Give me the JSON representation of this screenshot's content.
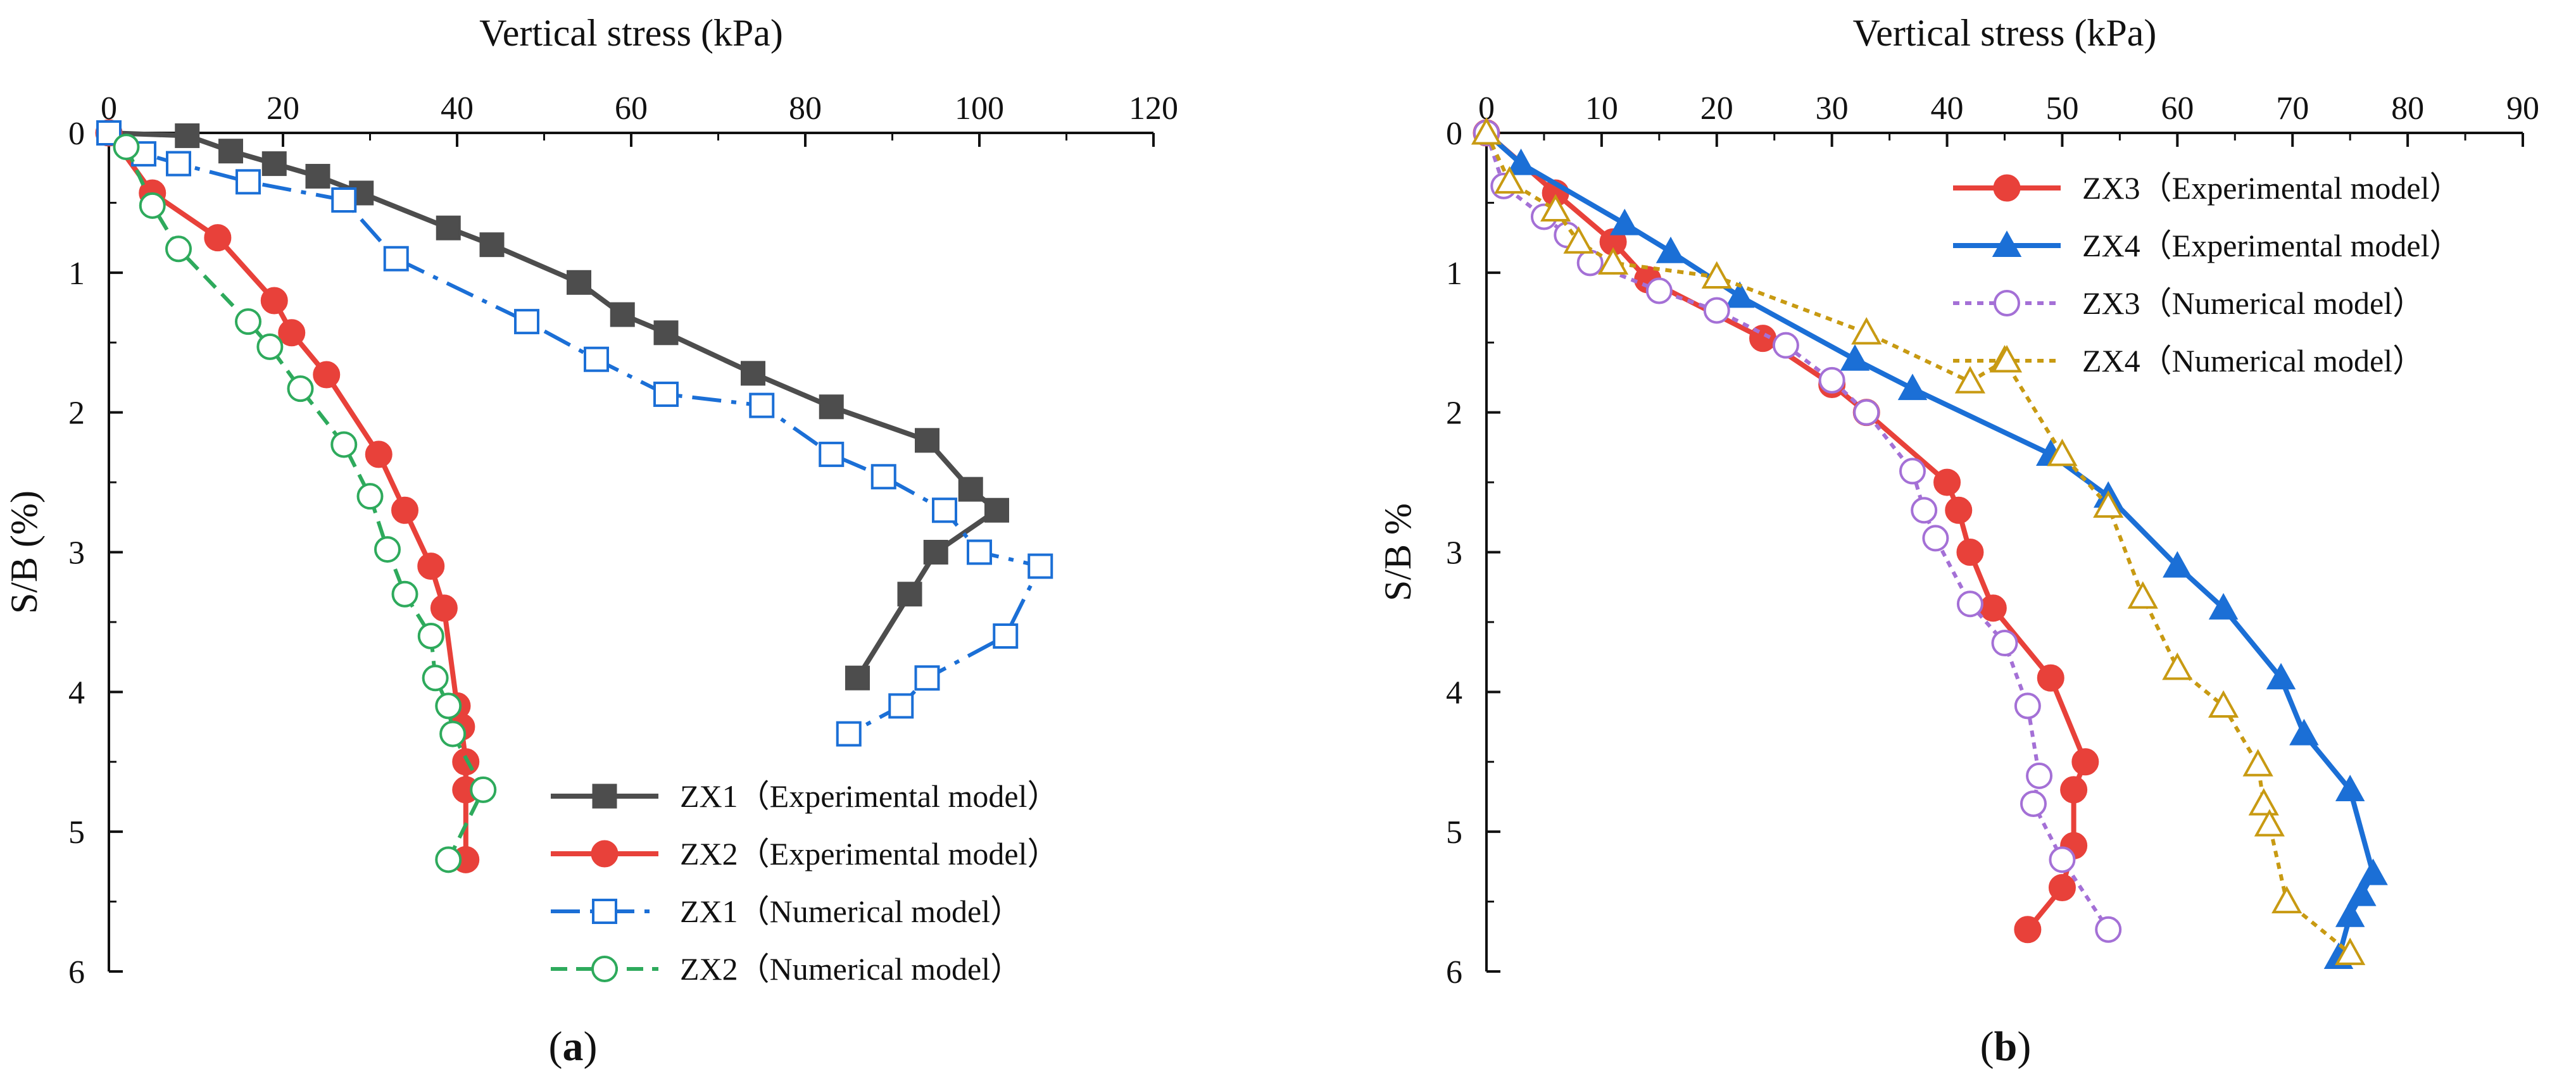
{
  "chart_data": [
    {
      "type": "line",
      "panel_label": "a",
      "caption_open": "(",
      "caption_close": ")",
      "xlabel": "Vertical stress (kPa)",
      "ylabel": "S/B (%)",
      "xlim": [
        0,
        120
      ],
      "ylim": [
        0,
        6
      ],
      "y_inverted": true,
      "x_axis_position": "top",
      "xticks": [
        "0",
        "20",
        "40",
        "60",
        "80",
        "100",
        "120"
      ],
      "yticks": [
        "0",
        "1",
        "2",
        "3",
        "4",
        "5",
        "6"
      ],
      "grid": false,
      "legend_position": "bottom-right",
      "series": [
        {
          "name": "ZX1（Experimental model）",
          "color": "#4d4d4d",
          "marker": "filled-square",
          "line_style": "solid",
          "points": [
            [
              0,
              0
            ],
            [
              9,
              0.02
            ],
            [
              14,
              0.13
            ],
            [
              19,
              0.22
            ],
            [
              24,
              0.31
            ],
            [
              29,
              0.43
            ],
            [
              39,
              0.68
            ],
            [
              44,
              0.8
            ],
            [
              54,
              1.07
            ],
            [
              59,
              1.3
            ],
            [
              64,
              1.43
            ],
            [
              74,
              1.72
            ],
            [
              83,
              1.96
            ],
            [
              94,
              2.2
            ],
            [
              99,
              2.55
            ],
            [
              102,
              2.7
            ],
            [
              95,
              3.0
            ],
            [
              92,
              3.3
            ],
            [
              86,
              3.9
            ]
          ]
        },
        {
          "name": "ZX2（Experimental model）",
          "color": "#e8413a",
          "marker": "filled-circle",
          "line_style": "solid",
          "points": [
            [
              0,
              0
            ],
            [
              5,
              0.43
            ],
            [
              12.5,
              0.75
            ],
            [
              19,
              1.2
            ],
            [
              21,
              1.43
            ],
            [
              25,
              1.73
            ],
            [
              31,
              2.3
            ],
            [
              34,
              2.7
            ],
            [
              37,
              3.1
            ],
            [
              38.5,
              3.4
            ],
            [
              40,
              4.1
            ],
            [
              40.5,
              4.25
            ],
            [
              41,
              4.5
            ],
            [
              41,
              4.7
            ],
            [
              41,
              5.2
            ]
          ]
        },
        {
          "name": "ZX1（Numerical model）",
          "color": "#1b6fd6",
          "marker": "open-square",
          "line_style": "dash-dot",
          "points": [
            [
              0,
              0
            ],
            [
              4,
              0.15
            ],
            [
              8,
              0.22
            ],
            [
              16,
              0.35
            ],
            [
              27,
              0.48
            ],
            [
              33,
              0.9
            ],
            [
              48,
              1.35
            ],
            [
              56,
              1.62
            ],
            [
              64,
              1.87
            ],
            [
              75,
              1.95
            ],
            [
              83,
              2.3
            ],
            [
              89,
              2.46
            ],
            [
              96,
              2.7
            ],
            [
              100,
              3.0
            ],
            [
              107,
              3.1
            ],
            [
              103,
              3.6
            ],
            [
              94,
              3.9
            ],
            [
              91,
              4.1
            ],
            [
              85,
              4.3
            ]
          ]
        },
        {
          "name": "ZX2（Numerical model）",
          "color": "#2eaa5c",
          "marker": "open-circle",
          "line_style": "dashed",
          "points": [
            [
              2,
              0.1
            ],
            [
              5,
              0.52
            ],
            [
              8,
              0.83
            ],
            [
              16,
              1.35
            ],
            [
              18.5,
              1.53
            ],
            [
              22,
              1.83
            ],
            [
              27,
              2.23
            ],
            [
              30,
              2.6
            ],
            [
              32,
              2.98
            ],
            [
              34,
              3.3
            ],
            [
              37,
              3.6
            ],
            [
              37.5,
              3.9
            ],
            [
              39,
              4.1
            ],
            [
              39.5,
              4.3
            ],
            [
              43,
              4.7
            ],
            [
              39,
              5.2
            ]
          ]
        }
      ]
    },
    {
      "type": "line",
      "panel_label": "b",
      "caption_open": "(",
      "caption_close": ")",
      "xlabel": "Vertical stress (kPa)",
      "ylabel": "S/B %",
      "xlim": [
        0,
        90
      ],
      "ylim": [
        0,
        6
      ],
      "y_inverted": true,
      "x_axis_position": "top",
      "xticks": [
        "0",
        "10",
        "20",
        "30",
        "40",
        "50",
        "60",
        "70",
        "80",
        "90"
      ],
      "yticks": [
        "0",
        "1",
        "2",
        "3",
        "4",
        "5",
        "6"
      ],
      "grid": false,
      "legend_position": "top-right",
      "series": [
        {
          "name": "ZX3（Experimental model）",
          "color": "#e8413a",
          "marker": "filled-circle",
          "line_style": "solid",
          "points": [
            [
              0,
              0
            ],
            [
              6,
              0.43
            ],
            [
              11,
              0.78
            ],
            [
              14,
              1.05
            ],
            [
              24,
              1.47
            ],
            [
              30,
              1.8
            ],
            [
              33,
              2.0
            ],
            [
              40,
              2.5
            ],
            [
              41,
              2.7
            ],
            [
              42,
              3.0
            ],
            [
              44,
              3.4
            ],
            [
              49,
              3.9
            ],
            [
              52,
              4.5
            ],
            [
              51,
              4.7
            ],
            [
              51,
              5.1
            ],
            [
              50,
              5.4
            ],
            [
              47,
              5.7
            ]
          ]
        },
        {
          "name": "ZX4（Experimental model）",
          "color": "#1b6fd6",
          "marker": "filled-triangle",
          "line_style": "solid",
          "points": [
            [
              0,
              0
            ],
            [
              3,
              0.22
            ],
            [
              12,
              0.65
            ],
            [
              16,
              0.85
            ],
            [
              22,
              1.17
            ],
            [
              32,
              1.62
            ],
            [
              37,
              1.83
            ],
            [
              49,
              2.3
            ],
            [
              54,
              2.6
            ],
            [
              60,
              3.1
            ],
            [
              64,
              3.4
            ],
            [
              69,
              3.9
            ],
            [
              71,
              4.3
            ],
            [
              75,
              4.7
            ],
            [
              77,
              5.3
            ],
            [
              76,
              5.45
            ],
            [
              75,
              5.6
            ],
            [
              74,
              5.9
            ]
          ]
        },
        {
          "name": "ZX3（Numerical model）",
          "color": "#a470d6",
          "marker": "open-circle",
          "line_style": "dotted",
          "points": [
            [
              0,
              0
            ],
            [
              1.5,
              0.38
            ],
            [
              5,
              0.6
            ],
            [
              7,
              0.73
            ],
            [
              9,
              0.93
            ],
            [
              15,
              1.13
            ],
            [
              20,
              1.27
            ],
            [
              26,
              1.52
            ],
            [
              30,
              1.77
            ],
            [
              33,
              2.0
            ],
            [
              37,
              2.42
            ],
            [
              38,
              2.7
            ],
            [
              39,
              2.9
            ],
            [
              42,
              3.37
            ],
            [
              45,
              3.65
            ],
            [
              47,
              4.1
            ],
            [
              48,
              4.6
            ],
            [
              47.5,
              4.8
            ],
            [
              50,
              5.2
            ],
            [
              54,
              5.7
            ]
          ]
        },
        {
          "name": "ZX4（Numerical model）",
          "color": "#c89a12",
          "marker": "open-triangle",
          "line_style": "dotted",
          "points": [
            [
              0,
              0
            ],
            [
              2,
              0.35
            ],
            [
              6,
              0.55
            ],
            [
              8,
              0.78
            ],
            [
              11,
              0.93
            ],
            [
              20,
              1.03
            ],
            [
              33,
              1.43
            ],
            [
              42,
              1.78
            ],
            [
              45,
              1.63
            ],
            [
              50,
              2.3
            ],
            [
              54,
              2.67
            ],
            [
              57,
              3.32
            ],
            [
              60,
              3.83
            ],
            [
              64,
              4.1
            ],
            [
              67,
              4.52
            ],
            [
              67.5,
              4.8
            ],
            [
              68,
              4.95
            ],
            [
              69.5,
              5.5
            ],
            [
              75,
              5.87
            ]
          ]
        }
      ]
    }
  ]
}
